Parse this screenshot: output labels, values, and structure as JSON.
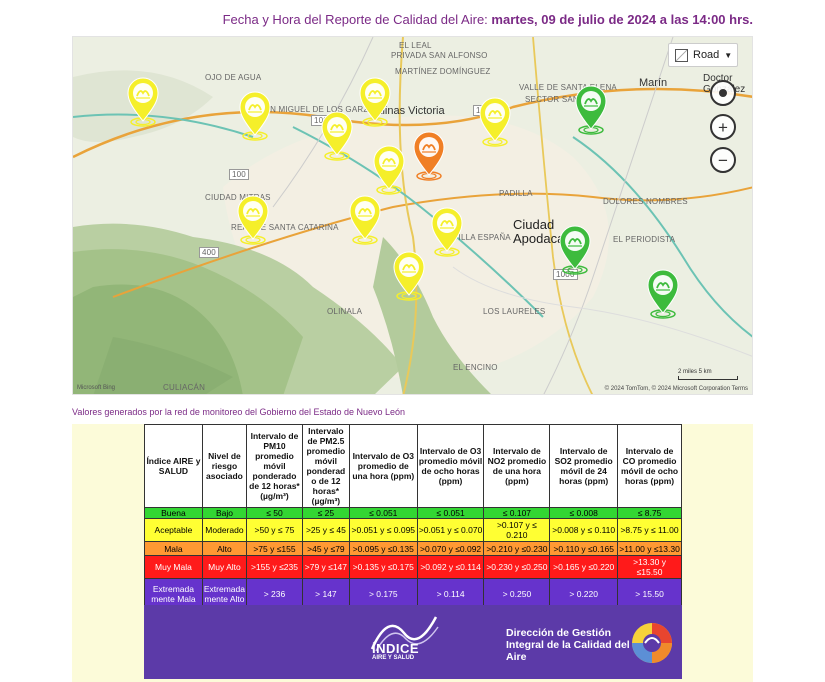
{
  "header": {
    "prefix": "Fecha y Hora del Reporte de Calidad del Aire: ",
    "datetime": "martes, 09 de julio de 2024 a las 14:00 hrs."
  },
  "map": {
    "road_label": "Road",
    "city_labels": {
      "salinas": "Salinas Victoria",
      "apodaca": "Ciudad\nApodaca",
      "marin": "Marín",
      "doctor": "Doctor\nGonzález"
    },
    "place_labels": [
      "El Leal",
      "Privada San Alfonso",
      "Santa Elena",
      "Martínez Domínguez",
      "Ojo de Agua",
      "San Miguel de los Garza",
      "Valle de Santa Elena",
      "Sector San Juan",
      "Real de Santa Catarina",
      "Ciudad Mitras",
      "Villa España",
      "Padilla",
      "Dolores Nombres",
      "El Periodista",
      "Los Laureles",
      "El Encino",
      "Culiacán",
      "Olinala"
    ],
    "attribution": "© 2024 TomTom, © 2024 Microsoft Corporation  Terms",
    "logo": "Microsoft Bing",
    "scale": "2 miles      5 km",
    "highway_numbers": [
      "1000",
      "100",
      "400",
      "100",
      "1000"
    ],
    "stations": [
      {
        "status": "aceptable",
        "color": "#f5ef2a"
      },
      {
        "status": "aceptable",
        "color": "#f5ef2a"
      },
      {
        "status": "aceptable",
        "color": "#f5ef2a"
      },
      {
        "status": "aceptable",
        "color": "#f5ef2a"
      },
      {
        "status": "aceptable",
        "color": "#f5ef2a"
      },
      {
        "status": "aceptable",
        "color": "#f5ef2a"
      },
      {
        "status": "aceptable",
        "color": "#f5ef2a"
      },
      {
        "status": "aceptable",
        "color": "#f5ef2a"
      },
      {
        "status": "aceptable",
        "color": "#f5ef2a"
      },
      {
        "status": "aceptable",
        "color": "#f5ef2a"
      },
      {
        "status": "mala",
        "color": "#f07f25"
      },
      {
        "status": "buena",
        "color": "#3dbb3d"
      },
      {
        "status": "buena",
        "color": "#3dbb3d"
      },
      {
        "status": "buena",
        "color": "#3dbb3d"
      }
    ]
  },
  "caption": "Valores generados por la red de monitoreo del Gobierno del Estado de Nuevo León",
  "table": {
    "headers": {
      "indice": "Índice AIRE y SALUD",
      "riesgo": "Nivel de riesgo asociado",
      "pm10": "Intervalo de PM10 promedio móvil ponderado de 12 horas* (µg/m³)",
      "pm25": "Intervalo de PM2.5 promedio móvil ponderad o de 12 horas* (µg/m³)",
      "o3h": "Intervalo de O3 promedio de una hora (ppm)",
      "o3_8": "Intervalo de O3 promedio móvil de ocho horas (ppm)",
      "no2": "Intervalo de NO2 promedio de una hora (ppm)",
      "so2": "Intervalo de SO2 promedio móvil de 24 horas (ppm)",
      "co": "Intervalo de CO promedio móvil de ocho horas (ppm)"
    },
    "rows": [
      {
        "cls": "r-buena",
        "cells": [
          "Buena",
          "Bajo",
          "≤ 50",
          "≤ 25",
          "≤ 0.051",
          "≤ 0.051",
          "≤ 0.107",
          "≤ 0.008",
          "≤ 8.75"
        ]
      },
      {
        "cls": "r-aceptable",
        "cells": [
          "Aceptable",
          "Moderado",
          ">50 y ≤ 75",
          ">25 y ≤ 45",
          ">0.051 y ≤ 0.095",
          ">0.051 y ≤ 0.070",
          ">0.107 y ≤ 0.210",
          ">0.008 y ≤ 0.110",
          ">8.75 y ≤ 11.00"
        ]
      },
      {
        "cls": "r-mala",
        "cells": [
          "Mala",
          "Alto",
          ">75 y ≤155",
          ">45 y ≤79",
          ">0.095 y ≤0.135",
          ">0.070 y ≤0.092",
          ">0.210 y ≤0.230",
          ">0.110 y ≤0.165",
          ">11.00 y ≤13.30"
        ]
      },
      {
        "cls": "r-muymala",
        "cells": [
          "Muy Mala",
          "Muy Alto",
          ">155 y ≤235",
          ">79 y ≤147",
          ">0.135 y ≤0.175",
          ">0.092 y ≤0.114",
          ">0.230 y ≤0.250",
          ">0.165 y ≤0.220",
          ">13.30 y ≤15.50"
        ]
      },
      {
        "cls": "r-extrema",
        "cells": [
          "Extremada mente Mala",
          "Extremada mente Alto",
          "> 236",
          "> 147",
          "> 0.175",
          "> 0.114",
          "> 0.250",
          "> 0.220",
          "> 15.50"
        ]
      }
    ]
  },
  "banner": {
    "logo_word": "ÍNDICE",
    "logo_sub": "AIRE Y SALUD",
    "direccion": "Dirección de Gestión Integral de la Calidad del Aire"
  }
}
